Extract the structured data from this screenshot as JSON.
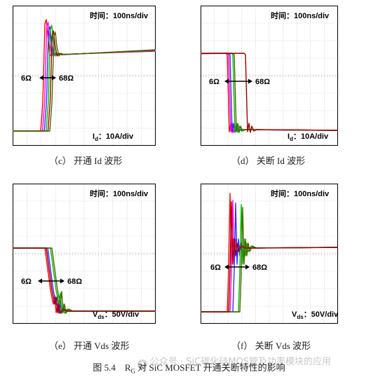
{
  "figure_caption": {
    "prefix": "图 5.4",
    "r_symbol": "R",
    "r_subscript": "G",
    "suffix": " 对 SiC MOSFET 开通关断特性的影响"
  },
  "watermark": {
    "text": "公众号 · SiC碳化硅MOS管及功率模块的应用"
  },
  "colors": {
    "red": "#ff0000",
    "magenta": "#ff00ff",
    "blue": "#3030ff",
    "green": "#00bb00",
    "darkred": "#a00000",
    "olive": "#4a6b00",
    "grid": "#c8c8c8",
    "frame": "#000000"
  },
  "chart_data": [
    {
      "type": "line",
      "panel_id": "c",
      "caption": "（c） 开通 Id 波形",
      "time_label": "时间：100ns/div",
      "scale_label_main": "I",
      "scale_label_sub": "d",
      "scale_label_value": "：10A/div",
      "range_left": "6Ω",
      "range_right": "68Ω",
      "series_colors": [
        "red",
        "magenta",
        "blue",
        "green",
        "darkred",
        "olive"
      ],
      "waveform": "turn_on_current",
      "grid": true
    },
    {
      "type": "line",
      "panel_id": "d",
      "caption": "（d） 关断 Id 波形",
      "time_label": "时间：100ns/div",
      "scale_label_main": "I",
      "scale_label_sub": "d",
      "scale_label_value": "：10A/div",
      "range_left": "6Ω",
      "range_right": "68Ω",
      "series_colors": [
        "red",
        "magenta",
        "blue",
        "green",
        "olive",
        "darkred"
      ],
      "waveform": "turn_off_current",
      "grid": true
    },
    {
      "type": "line",
      "panel_id": "e",
      "caption": "（e） 开通 Vds 波形",
      "time_label": "时间：100ns/div",
      "scale_label_main": "V",
      "scale_label_sub": "ds",
      "scale_label_value": "：50V/div",
      "range_left": "6Ω",
      "range_right": "68Ω",
      "series_colors": [
        "red",
        "magenta",
        "blue",
        "green",
        "olive",
        "darkred"
      ],
      "waveform": "turn_on_voltage",
      "grid": true
    },
    {
      "type": "line",
      "panel_id": "f",
      "caption": "（f） 关断 Vds 波形",
      "time_label": "时间：100ns/div",
      "scale_label_main": "V",
      "scale_label_sub": "ds",
      "scale_label_value": "：50V/div",
      "range_left": "6Ω",
      "range_right": "68Ω",
      "series_colors": [
        "red",
        "magenta",
        "blue",
        "green",
        "olive",
        "darkred"
      ],
      "waveform": "turn_off_voltage",
      "grid": true
    }
  ]
}
